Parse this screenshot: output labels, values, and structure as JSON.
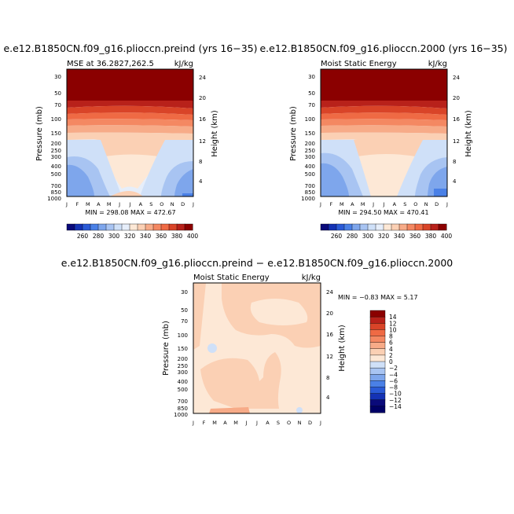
{
  "chart_data": [
    {
      "type": "heatmap",
      "title": "e.e12.B1850CN.f09_g16.plioccn.preind (yrs 16−35)",
      "subtitle_left": "MSE at 36.2827,262.5",
      "subtitle_right": "kJ/kg",
      "xlabel": "",
      "ylabel": "Pressure (mb)",
      "ylabel_right": "Height (km)",
      "x_ticklabels": [
        "J",
        "F",
        "M",
        "A",
        "M",
        "J",
        "J",
        "A",
        "S",
        "O",
        "N",
        "D",
        "J"
      ],
      "y_ticklabels": [
        "30",
        "50",
        "70",
        "100",
        "150",
        "200",
        "250",
        "300",
        "400",
        "500",
        "700",
        "850",
        "1000"
      ],
      "y2_ticklabels": [
        "24",
        "20",
        "16",
        "12",
        "8",
        "4"
      ],
      "stats": "MIN = 298.08   MAX = 472.67",
      "grid": false
    },
    {
      "type": "heatmap",
      "title": "e.e12.B1850CN.f09_g16.plioccn.2000 (yrs 16−35)",
      "subtitle_left": "Moist Static Energy",
      "subtitle_right": "kJ/kg",
      "xlabel": "",
      "ylabel": "Pressure (mb)",
      "ylabel_right": "Height (km)",
      "x_ticklabels": [
        "J",
        "F",
        "M",
        "A",
        "M",
        "J",
        "J",
        "A",
        "S",
        "O",
        "N",
        "D",
        "J"
      ],
      "y_ticklabels": [
        "30",
        "50",
        "70",
        "100",
        "150",
        "200",
        "250",
        "300",
        "400",
        "500",
        "700",
        "850",
        "1000"
      ],
      "y2_ticklabels": [
        "24",
        "20",
        "16",
        "12",
        "8",
        "4"
      ],
      "stats": "MIN = 294.50   MAX = 470.41",
      "grid": false
    },
    {
      "type": "heatmap",
      "title": "e.e12.B1850CN.f09_g16.plioccn.preind − e.e12.B1850CN.f09_g16.plioccn.2000",
      "subtitle_left": "Moist Static Energy",
      "subtitle_right": "kJ/kg",
      "xlabel": "",
      "ylabel": "Pressure (mb)",
      "ylabel_right": "Height (km)",
      "x_ticklabels": [
        "J",
        "F",
        "M",
        "A",
        "M",
        "J",
        "J",
        "A",
        "S",
        "O",
        "N",
        "D",
        "J"
      ],
      "y_ticklabels": [
        "30",
        "50",
        "70",
        "100",
        "150",
        "200",
        "250",
        "300",
        "400",
        "500",
        "700",
        "850",
        "1000"
      ],
      "y2_ticklabels": [
        "24",
        "20",
        "16",
        "12",
        "8",
        "4"
      ],
      "stats": "MIN =   −0.83   MAX =    5.17",
      "grid": false
    }
  ],
  "colorbar_abs": {
    "labels": [
      "260",
      "280",
      "300",
      "320",
      "340",
      "360",
      "380",
      "400"
    ],
    "colors": [
      "#0a0a7a",
      "#1432b4",
      "#2a5ad6",
      "#4a80e6",
      "#7ea6ec",
      "#a8c4f2",
      "#cfe0f8",
      "#e6eefa",
      "#fde8d6",
      "#fbd0b4",
      "#f7ab88",
      "#f48862",
      "#ef6a44",
      "#d94428",
      "#b8211a",
      "#8b0000"
    ]
  },
  "colorbar_diff": {
    "labels": [
      "14",
      "12",
      "10",
      "8",
      "6",
      "4",
      "2",
      "0",
      "−2",
      "−4",
      "−6",
      "−8",
      "−10",
      "−12",
      "−14"
    ],
    "colors": [
      "#8b0000",
      "#b8211a",
      "#d94428",
      "#ef6a44",
      "#f48862",
      "#f7ab88",
      "#fbd0b4",
      "#fde8d6",
      "#cfe0f8",
      "#a8c4f2",
      "#7ea6ec",
      "#4a80e6",
      "#2a5ad6",
      "#1432b4",
      "#0a0a7a",
      "#000066"
    ]
  }
}
